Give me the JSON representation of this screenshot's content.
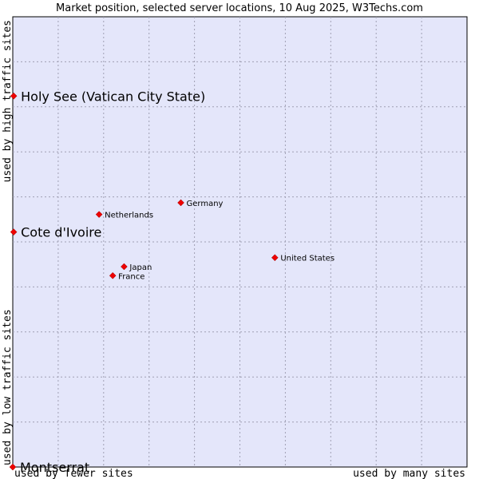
{
  "chart_data": {
    "type": "scatter",
    "title": "Market position, selected server locations, 10 Aug 2025, W3Techs.com",
    "x_axis": {
      "low_label": "used by fewer sites",
      "high_label": "used by many sites",
      "range": [
        0,
        100
      ]
    },
    "y_axis": {
      "low_label": "used by low traffic sites",
      "high_label": "used by high traffic sites",
      "range": [
        0,
        100
      ]
    },
    "grid": true,
    "colors": {
      "plot_bg": "#e4e6fa",
      "grid": "#a0a0b4",
      "point": "#ee0000"
    },
    "points": [
      {
        "name": "Holy See (Vatican City State)",
        "x": 0.2,
        "y": 82.4,
        "size": "large"
      },
      {
        "name": "Cote d'Ivoire",
        "x": 0.2,
        "y": 52.2,
        "size": "large"
      },
      {
        "name": "Montserrat",
        "x": 0.0,
        "y": 0.0,
        "size": "large"
      },
      {
        "name": "Germany",
        "x": 37.0,
        "y": 58.7,
        "size": "small"
      },
      {
        "name": "Netherlands",
        "x": 19.0,
        "y": 56.1,
        "size": "small"
      },
      {
        "name": "United States",
        "x": 57.7,
        "y": 46.5,
        "size": "small"
      },
      {
        "name": "Japan",
        "x": 24.5,
        "y": 44.5,
        "size": "small"
      },
      {
        "name": "France",
        "x": 22.0,
        "y": 42.5,
        "size": "small"
      }
    ]
  }
}
